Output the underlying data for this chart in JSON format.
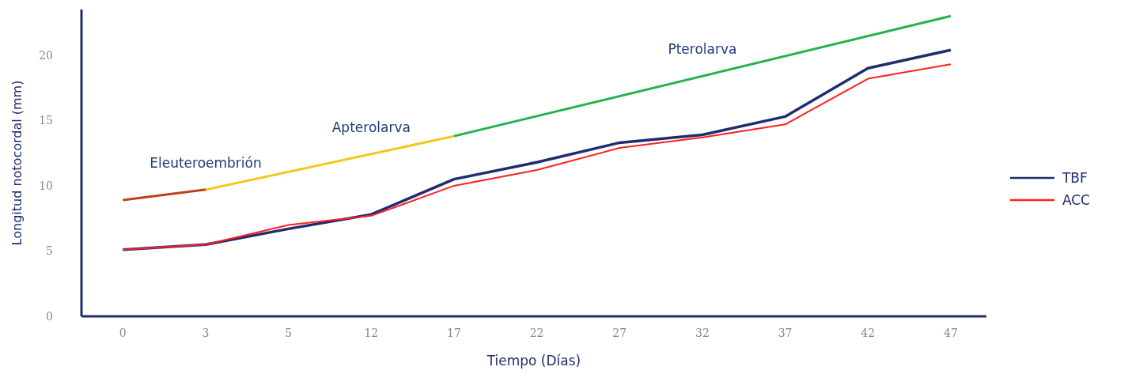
{
  "chart_data": {
    "type": "line",
    "xlabel": "Tiempo (Días)",
    "ylabel": "Longitud notocordal  (mm)",
    "categories": [
      "0",
      "3",
      "5",
      "12",
      "17",
      "22",
      "27",
      "32",
      "37",
      "42",
      "47"
    ],
    "annotations": [
      {
        "text": "Eleuteroembrión",
        "x": "3",
        "y": 9.7
      },
      {
        "text": "Apterolarva",
        "x": "12",
        "y": 12.4
      },
      {
        "text": "Pterolarva",
        "x": "32",
        "y": 18.4
      }
    ],
    "ylim": [
      0,
      23.5
    ],
    "yticks": [
      0,
      5,
      10,
      15,
      20
    ],
    "grid": false,
    "legend": "right",
    "marker": "none",
    "line_style": "solid",
    "series": [
      {
        "name": "TBF",
        "color": "#1f2d6e",
        "values": [
          5.1,
          5.5,
          6.7,
          7.8,
          10.5,
          11.8,
          13.3,
          13.9,
          15.3,
          19.0,
          20.4
        ]
      },
      {
        "name": "ACC",
        "color": "#ff2020",
        "values": [
          5.1,
          5.5,
          7.0,
          7.7,
          10.0,
          11.2,
          12.9,
          13.7,
          14.7,
          18.2,
          19.3
        ]
      },
      {
        "color": "#c0401a",
        "values": [
          8.9,
          9.7,
          null,
          null,
          null,
          null,
          null,
          null,
          null,
          null,
          null
        ]
      },
      {
        "color": "#f5c518",
        "values": [
          null,
          9.7,
          null,
          null,
          13.8,
          null,
          null,
          null,
          null,
          null,
          null
        ]
      },
      {
        "color": "#22b24c",
        "values": [
          null,
          null,
          null,
          null,
          13.8,
          null,
          null,
          null,
          null,
          null,
          23.0
        ]
      }
    ]
  }
}
